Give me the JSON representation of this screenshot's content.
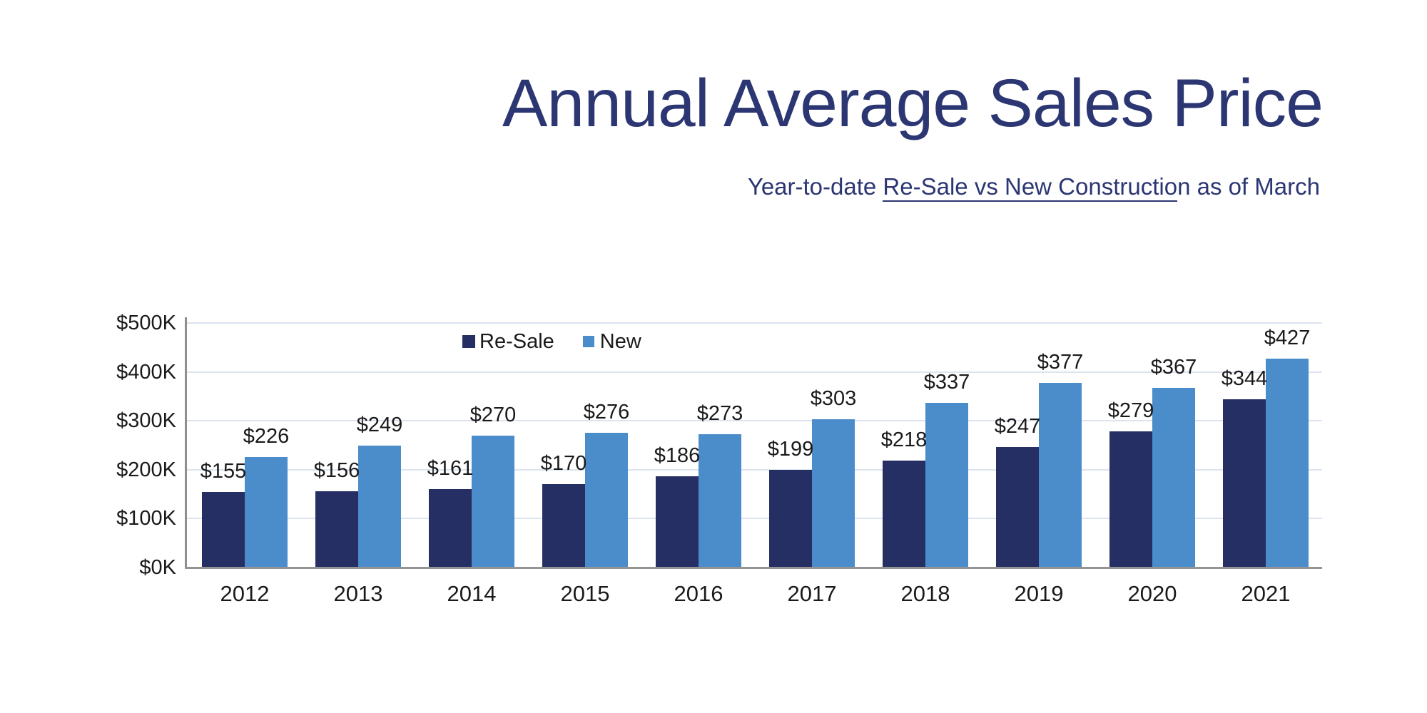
{
  "header": {
    "title": "Annual Average Sales Price",
    "subtitle": {
      "prefix": "Year-to-date ",
      "underlined": "Re-Sale vs New Constructio",
      "suffix": "n as of March"
    }
  },
  "colors": {
    "title_text": "#2b3672",
    "resale_bar": "#262f64",
    "new_bar": "#4b8cca",
    "gridline": "#dde4ef",
    "axis_line": "#8f8f8f",
    "label_text": "#1a1a1a"
  },
  "chart_data": {
    "type": "bar",
    "title": "Annual Average Sales Price",
    "subtitle": "Year-to-date Re-Sale vs New Construction as of March",
    "categories": [
      "2012",
      "2013",
      "2014",
      "2015",
      "2016",
      "2017",
      "2018",
      "2019",
      "2020",
      "2021"
    ],
    "series": [
      {
        "name": "Re-Sale",
        "color": "#262f64",
        "values": [
          155,
          156,
          161,
          170,
          186,
          199,
          218,
          247,
          279,
          344
        ]
      },
      {
        "name": "New",
        "color": "#4b8cca",
        "values": [
          226,
          249,
          270,
          276,
          273,
          303,
          337,
          377,
          367,
          427
        ]
      }
    ],
    "value_prefix": "$",
    "data_labels": true,
    "y_ticks": [
      "$0K",
      "$100K",
      "$200K",
      "$300K",
      "$400K",
      "$500K"
    ],
    "ylim": [
      0,
      500
    ],
    "xlabel": "",
    "ylabel": "",
    "grid": true,
    "legend_position": "top-inside"
  }
}
